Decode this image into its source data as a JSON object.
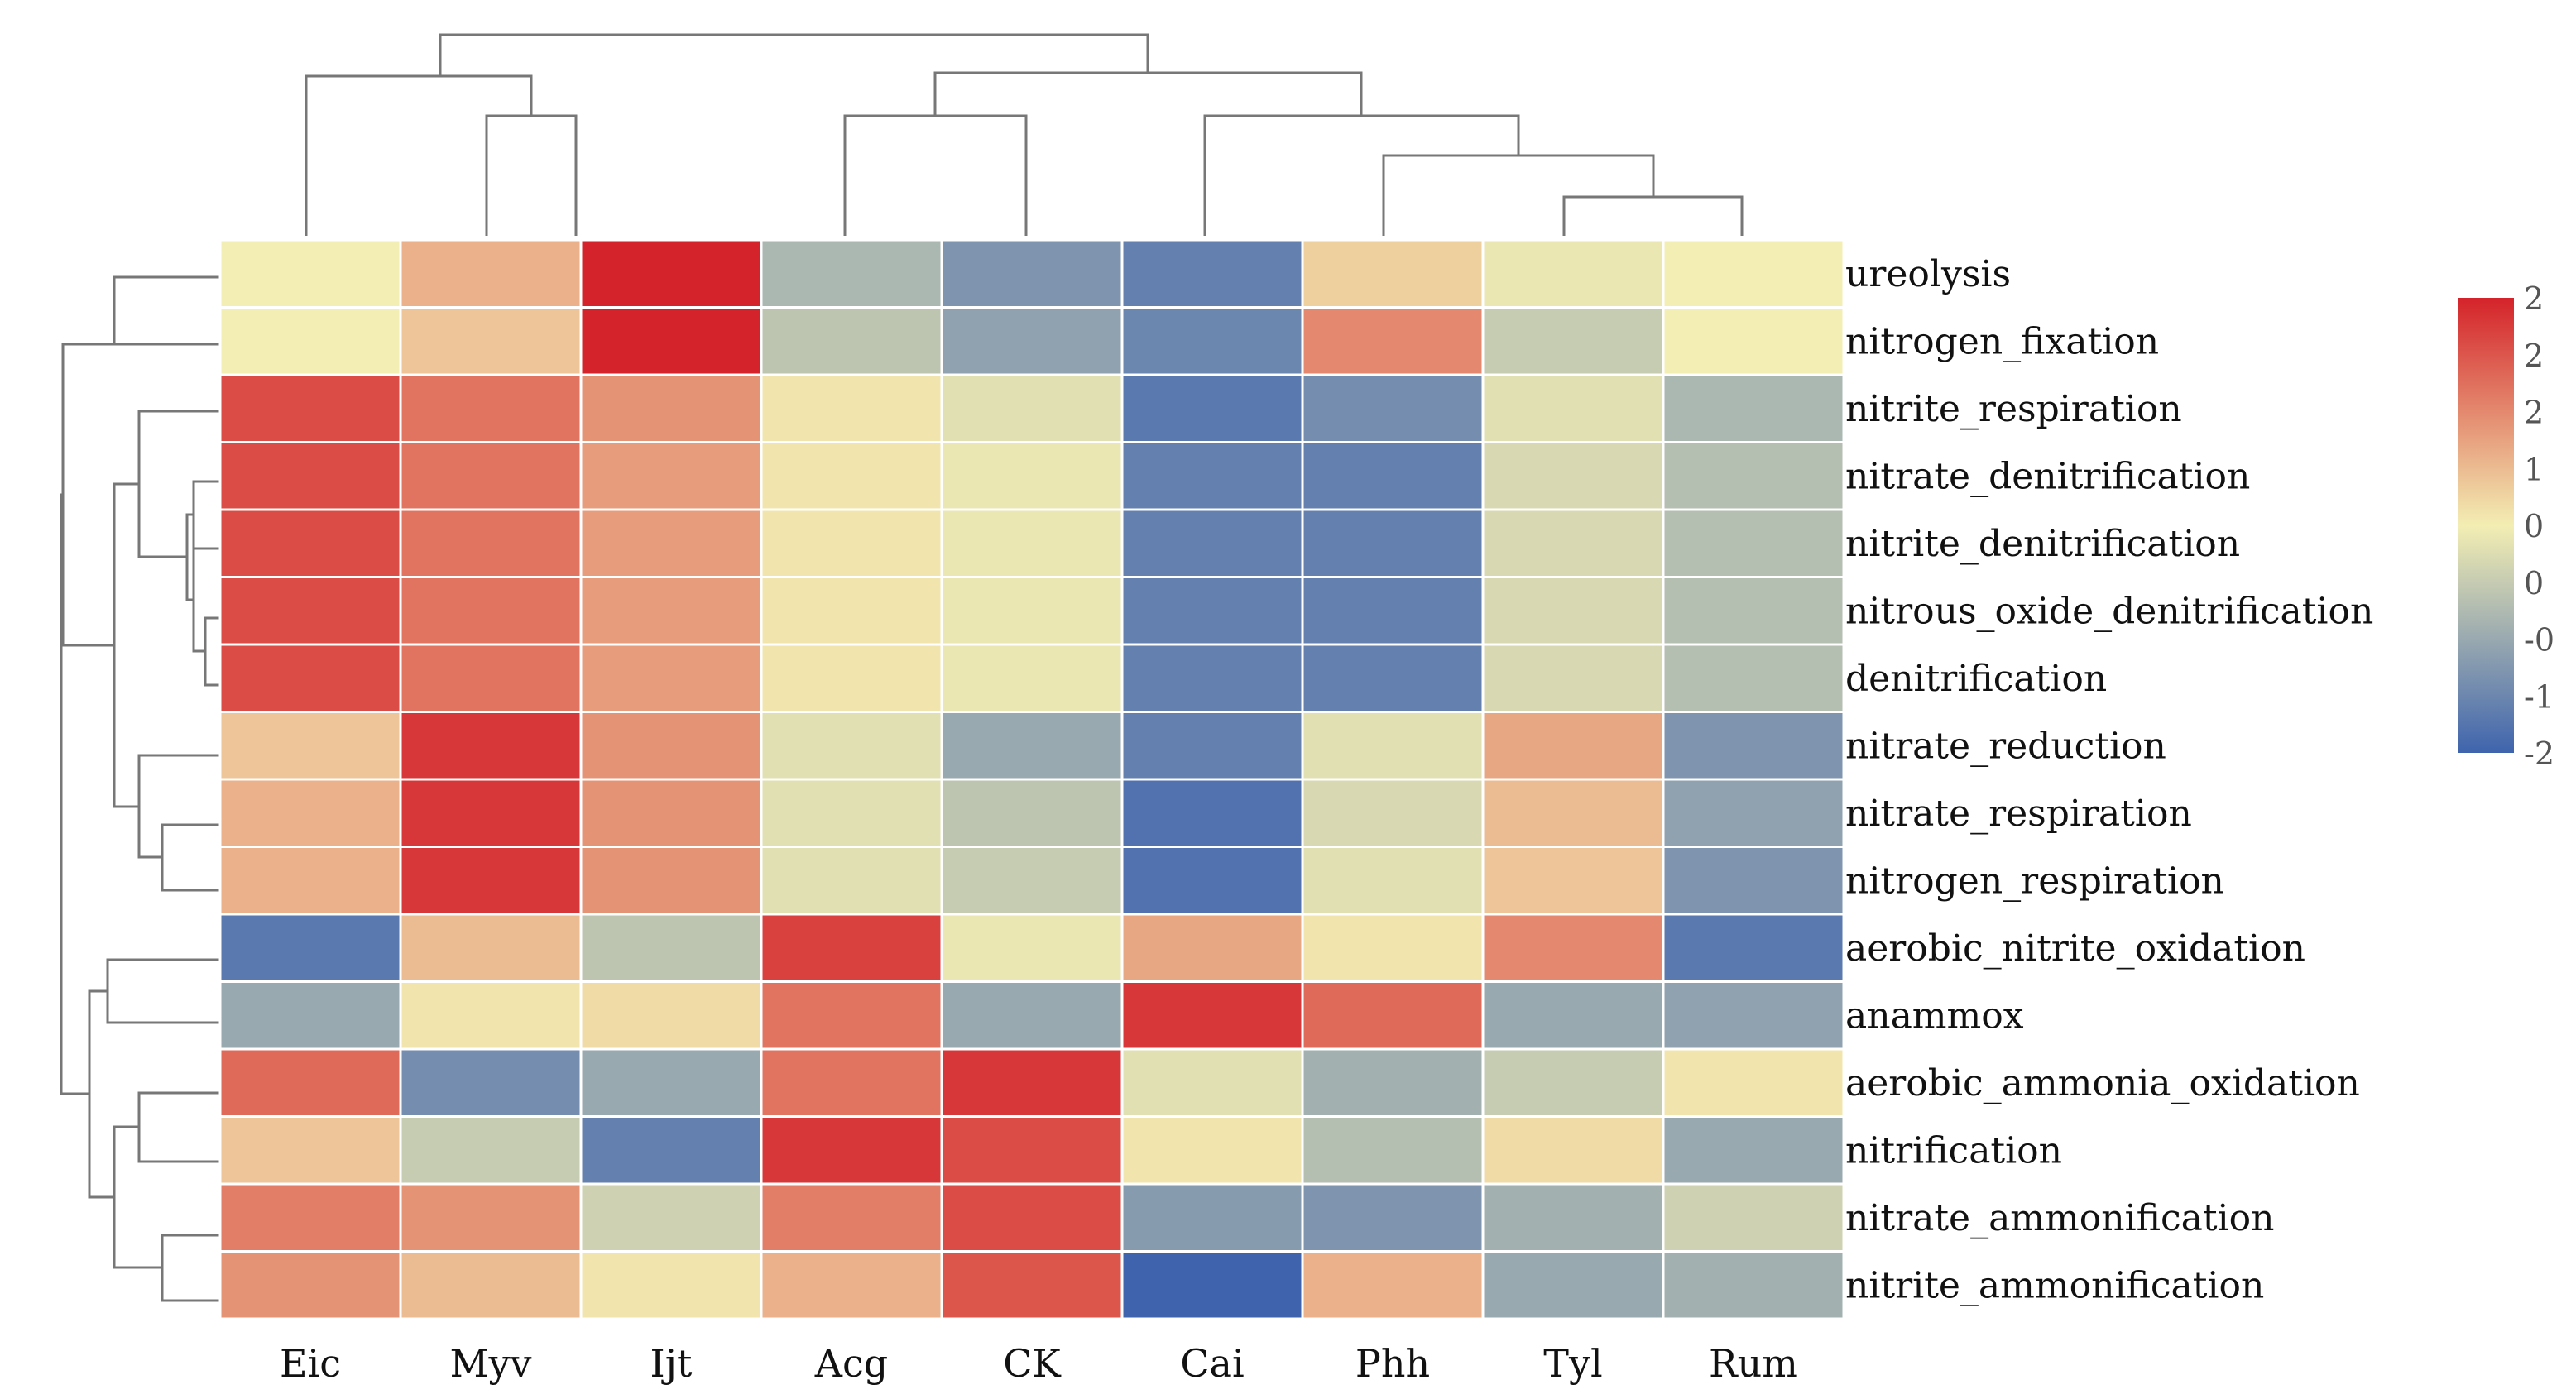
{
  "chart_data": {
    "type": "heatmap",
    "columns": [
      "Eic",
      "Myv",
      "Ijt",
      "Acg",
      "CK",
      "Cai",
      "Phh",
      "Tyl",
      "Rum"
    ],
    "rows": [
      "ureolysis",
      "nitrogen_fixation",
      "nitrite_respiration",
      "nitrate_denitrification",
      "nitrite_denitrification",
      "nitrous_oxide_denitrification",
      "denitrification",
      "nitrate_reduction",
      "nitrate_respiration",
      "nitrogen_respiration",
      "aerobic_nitrite_oxidation",
      "anammox",
      "aerobic_ammonia_oxidation",
      "nitrification",
      "nitrate_ammonification",
      "nitrite_ammonification"
    ],
    "values": [
      [
        0.0,
        0.6,
        2.2,
        -0.8,
        -1.3,
        -1.6,
        0.3,
        -0.1,
        0.0
      ],
      [
        0.0,
        0.4,
        2.1,
        -0.6,
        -1.1,
        -1.5,
        1.0,
        -0.5,
        0.0
      ],
      [
        1.6,
        1.2,
        0.9,
        0.1,
        -0.2,
        -1.7,
        -1.4,
        -0.2,
        -0.8
      ],
      [
        1.6,
        1.2,
        0.8,
        0.1,
        -0.1,
        -1.6,
        -1.6,
        -0.3,
        -0.7
      ],
      [
        1.6,
        1.2,
        0.8,
        0.1,
        -0.1,
        -1.6,
        -1.6,
        -0.3,
        -0.7
      ],
      [
        1.6,
        1.2,
        0.8,
        0.1,
        -0.1,
        -1.6,
        -1.6,
        -0.3,
        -0.7
      ],
      [
        1.6,
        1.2,
        0.8,
        0.1,
        -0.1,
        -1.6,
        -1.6,
        -0.3,
        -0.7
      ],
      [
        0.4,
        1.8,
        0.9,
        -0.2,
        -1.0,
        -1.6,
        -0.2,
        0.7,
        -1.3
      ],
      [
        0.6,
        1.8,
        0.9,
        -0.2,
        -0.6,
        -1.8,
        -0.3,
        0.5,
        -1.1
      ],
      [
        0.6,
        1.8,
        0.9,
        -0.2,
        -0.5,
        -1.8,
        -0.2,
        0.4,
        -1.3
      ],
      [
        -1.7,
        0.5,
        -0.6,
        1.7,
        -0.1,
        0.7,
        0.1,
        1.0,
        -1.7
      ],
      [
        -1.0,
        0.1,
        0.2,
        1.2,
        -1.0,
        1.8,
        1.3,
        -1.0,
        -1.1
      ],
      [
        1.3,
        -1.4,
        -1.0,
        1.2,
        1.8,
        -0.2,
        -0.9,
        -0.5,
        0.1
      ],
      [
        0.4,
        -0.5,
        -1.6,
        1.8,
        1.6,
        0.1,
        -0.7,
        0.2,
        -1.0
      ],
      [
        1.1,
        0.9,
        -0.4,
        1.1,
        1.6,
        -1.2,
        -1.3,
        -0.9,
        -0.4
      ],
      [
        0.9,
        0.5,
        0.1,
        0.6,
        1.5,
        -2.0,
        0.6,
        -1.0,
        -0.9
      ]
    ],
    "colorbar": {
      "ticks": [
        "2",
        "2",
        "2",
        "1",
        "0",
        "0",
        "-0",
        "-1",
        "-2"
      ],
      "colors": [
        "#3f64ad",
        "#f3eeb3",
        "#d4232a"
      ]
    },
    "title": "",
    "xlabel": "",
    "ylabel": ""
  }
}
